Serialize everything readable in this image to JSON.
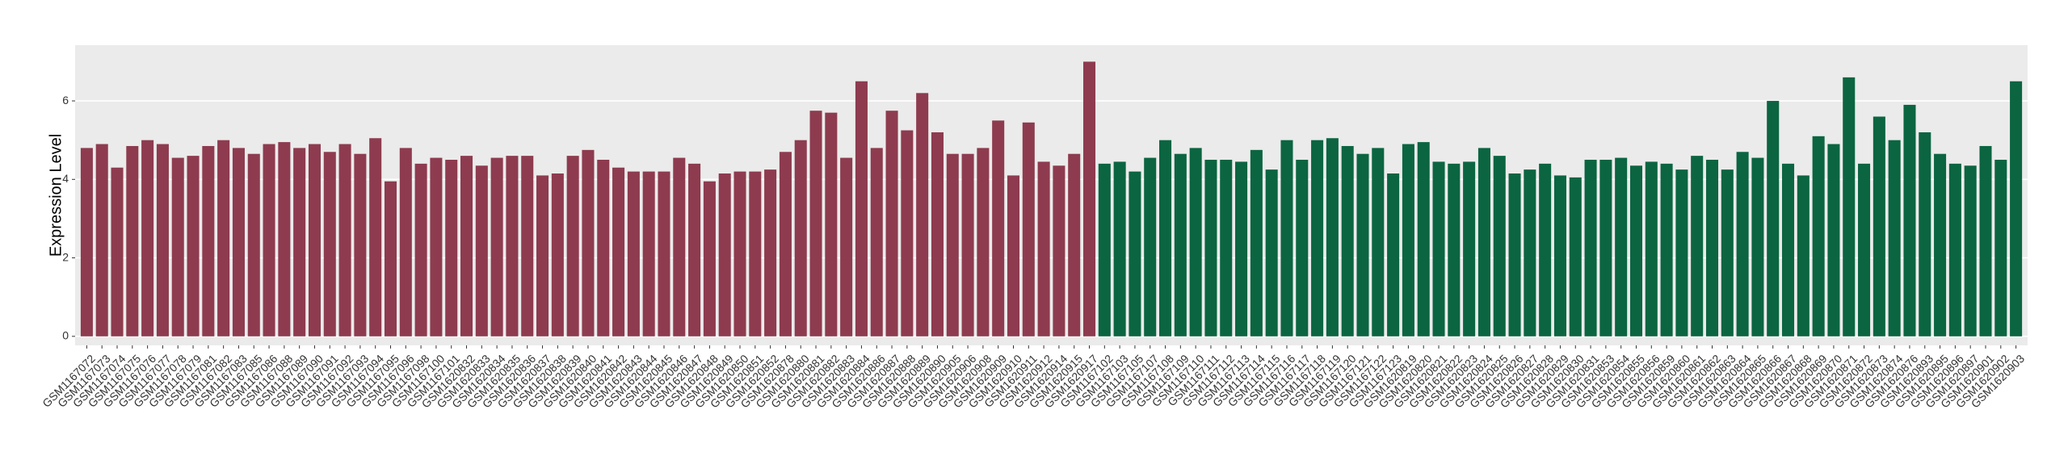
{
  "chart_data": {
    "type": "bar",
    "y_label": "Expression Level",
    "ylim": [
      -0.23,
      7.42
    ],
    "yticks": [
      0,
      2,
      4,
      6
    ],
    "grid": true,
    "series": [
      {
        "color": "#8e3b4f",
        "categories": [
          "GSM1167072",
          "GSM1167073",
          "GSM1167074",
          "GSM1167075",
          "GSM1167076",
          "GSM1167077",
          "GSM1167078",
          "GSM1167079",
          "GSM1167081",
          "GSM1167082",
          "GSM1167083",
          "GSM1167085",
          "GSM1167086",
          "GSM1167088",
          "GSM1167089",
          "GSM1167090",
          "GSM1167091",
          "GSM1167092",
          "GSM1167093",
          "GSM1167094",
          "GSM1167095",
          "GSM1167096",
          "GSM1167098",
          "GSM1167100",
          "GSM1167101",
          "GSM1620832",
          "GSM1620833",
          "GSM1620834",
          "GSM1620835",
          "GSM1620836",
          "GSM1620837",
          "GSM1620838",
          "GSM1620839",
          "GSM1620840",
          "GSM1620841",
          "GSM1620842",
          "GSM1620843",
          "GSM1620844",
          "GSM1620845",
          "GSM1620846",
          "GSM1620847",
          "GSM1620848",
          "GSM1620849",
          "GSM1620850",
          "GSM1620851",
          "GSM1620852",
          "GSM1620878",
          "GSM1620880",
          "GSM1620881",
          "GSM1620882",
          "GSM1620883",
          "GSM1620884",
          "GSM1620886",
          "GSM1620887",
          "GSM1620888",
          "GSM1620889",
          "GSM1620890",
          "GSM1620905",
          "GSM1620906",
          "GSM1620908",
          "GSM1620909",
          "GSM1620910",
          "GSM1620911",
          "GSM1620912",
          "GSM1620914",
          "GSM1620915",
          "GSM1620917"
        ],
        "values": [
          4.8,
          4.9,
          4.3,
          4.85,
          5.0,
          4.9,
          4.55,
          4.6,
          4.85,
          5.0,
          4.8,
          4.65,
          4.9,
          4.95,
          4.8,
          4.9,
          4.7,
          4.9,
          4.65,
          5.05,
          3.95,
          4.8,
          4.4,
          4.55,
          4.5,
          4.6,
          4.35,
          4.55,
          4.6,
          4.6,
          4.1,
          4.15,
          4.6,
          4.75,
          4.5,
          4.3,
          4.2,
          4.2,
          4.2,
          4.55,
          4.4,
          3.95,
          4.15,
          4.2,
          4.2,
          4.25,
          4.7,
          5.0,
          5.75,
          5.7,
          4.55,
          6.5,
          4.8,
          5.75,
          5.25,
          6.2,
          5.2,
          4.65,
          4.65,
          4.8,
          5.5,
          4.1,
          5.45,
          4.45,
          4.35,
          4.65,
          7.0
        ]
      },
      {
        "color": "#0b6541",
        "categories": [
          "GSM1167102",
          "GSM1167103",
          "GSM1167105",
          "GSM1167107",
          "GSM1167108",
          "GSM1167109",
          "GSM1167110",
          "GSM1167111",
          "GSM1167112",
          "GSM1167113",
          "GSM1167114",
          "GSM1167115",
          "GSM1167116",
          "GSM1167117",
          "GSM1167118",
          "GSM1167119",
          "GSM1167120",
          "GSM1167121",
          "GSM1167122",
          "GSM1167123",
          "GSM1620819",
          "GSM1620820",
          "GSM1620821",
          "GSM1620822",
          "GSM1620823",
          "GSM1620824",
          "GSM1620825",
          "GSM1620826",
          "GSM1620827",
          "GSM1620828",
          "GSM1620829",
          "GSM1620830",
          "GSM1620831",
          "GSM1620853",
          "GSM1620854",
          "GSM1620855",
          "GSM1620856",
          "GSM1620859",
          "GSM1620860",
          "GSM1620861",
          "GSM1620862",
          "GSM1620863",
          "GSM1620864",
          "GSM1620865",
          "GSM1620866",
          "GSM1620867",
          "GSM1620868",
          "GSM1620869",
          "GSM1620870",
          "GSM1620871",
          "GSM1620872",
          "GSM1620873",
          "GSM1620874",
          "GSM1620876",
          "GSM1620893",
          "GSM1620895",
          "GSM1620896",
          "GSM1620897",
          "GSM1620901",
          "GSM1620902",
          "GSM1620903"
        ],
        "values": [
          4.4,
          4.45,
          4.2,
          4.55,
          5.0,
          4.65,
          4.8,
          4.5,
          4.5,
          4.45,
          4.75,
          4.25,
          5.0,
          4.5,
          5.0,
          5.05,
          4.85,
          4.65,
          4.8,
          4.15,
          4.9,
          4.95,
          4.45,
          4.4,
          4.45,
          4.8,
          4.6,
          4.15,
          4.25,
          4.4,
          4.1,
          4.05,
          4.5,
          4.5,
          4.55,
          4.35,
          4.45,
          4.4,
          4.25,
          4.6,
          4.5,
          4.25,
          4.7,
          4.55,
          6.0,
          4.4,
          4.1,
          5.1,
          4.9,
          6.6,
          4.4,
          5.6,
          5.0,
          5.9,
          5.2,
          4.65,
          4.4,
          4.35,
          4.85,
          4.5,
          6.5
        ]
      }
    ]
  }
}
